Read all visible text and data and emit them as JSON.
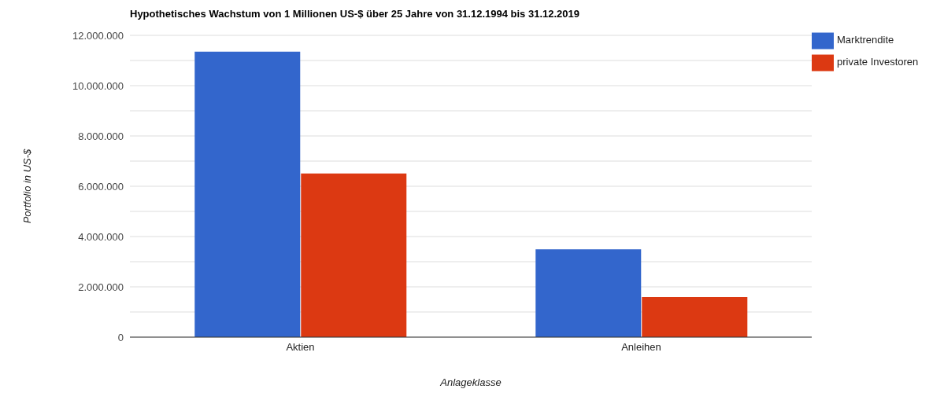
{
  "chart_data": {
    "type": "bar",
    "title": "Hypothetisches Wachstum von 1 Millionen US-$ über 25 Jahre von 31.12.1994 bis 31.12.2019",
    "xlabel": "Anlageklasse",
    "ylabel": "Portfolio in US-$",
    "categories": [
      "Aktien",
      "Anleihen"
    ],
    "series": [
      {
        "name": "Marktrendite",
        "color": "#3366cc",
        "values": [
          11350000,
          3490000
        ]
      },
      {
        "name": "private Investoren",
        "color": "#dc3912",
        "values": [
          6510000,
          1590000
        ]
      }
    ],
    "ylim": [
      0,
      12000000
    ],
    "yticks": [
      {
        "value": 0,
        "label": "0"
      },
      {
        "value": 1000000,
        "label": null
      },
      {
        "value": 2000000,
        "label": "2.000.000"
      },
      {
        "value": 3000000,
        "label": null
      },
      {
        "value": 4000000,
        "label": "4.000.000"
      },
      {
        "value": 5000000,
        "label": null
      },
      {
        "value": 6000000,
        "label": "6.000.000"
      },
      {
        "value": 7000000,
        "label": null
      },
      {
        "value": 8000000,
        "label": "8.000.000"
      },
      {
        "value": 9000000,
        "label": null
      },
      {
        "value": 10000000,
        "label": "10.000.000"
      },
      {
        "value": 11000000,
        "label": null
      },
      {
        "value": 12000000,
        "label": "12.000.000"
      }
    ],
    "grid": true,
    "legend": "top right"
  }
}
